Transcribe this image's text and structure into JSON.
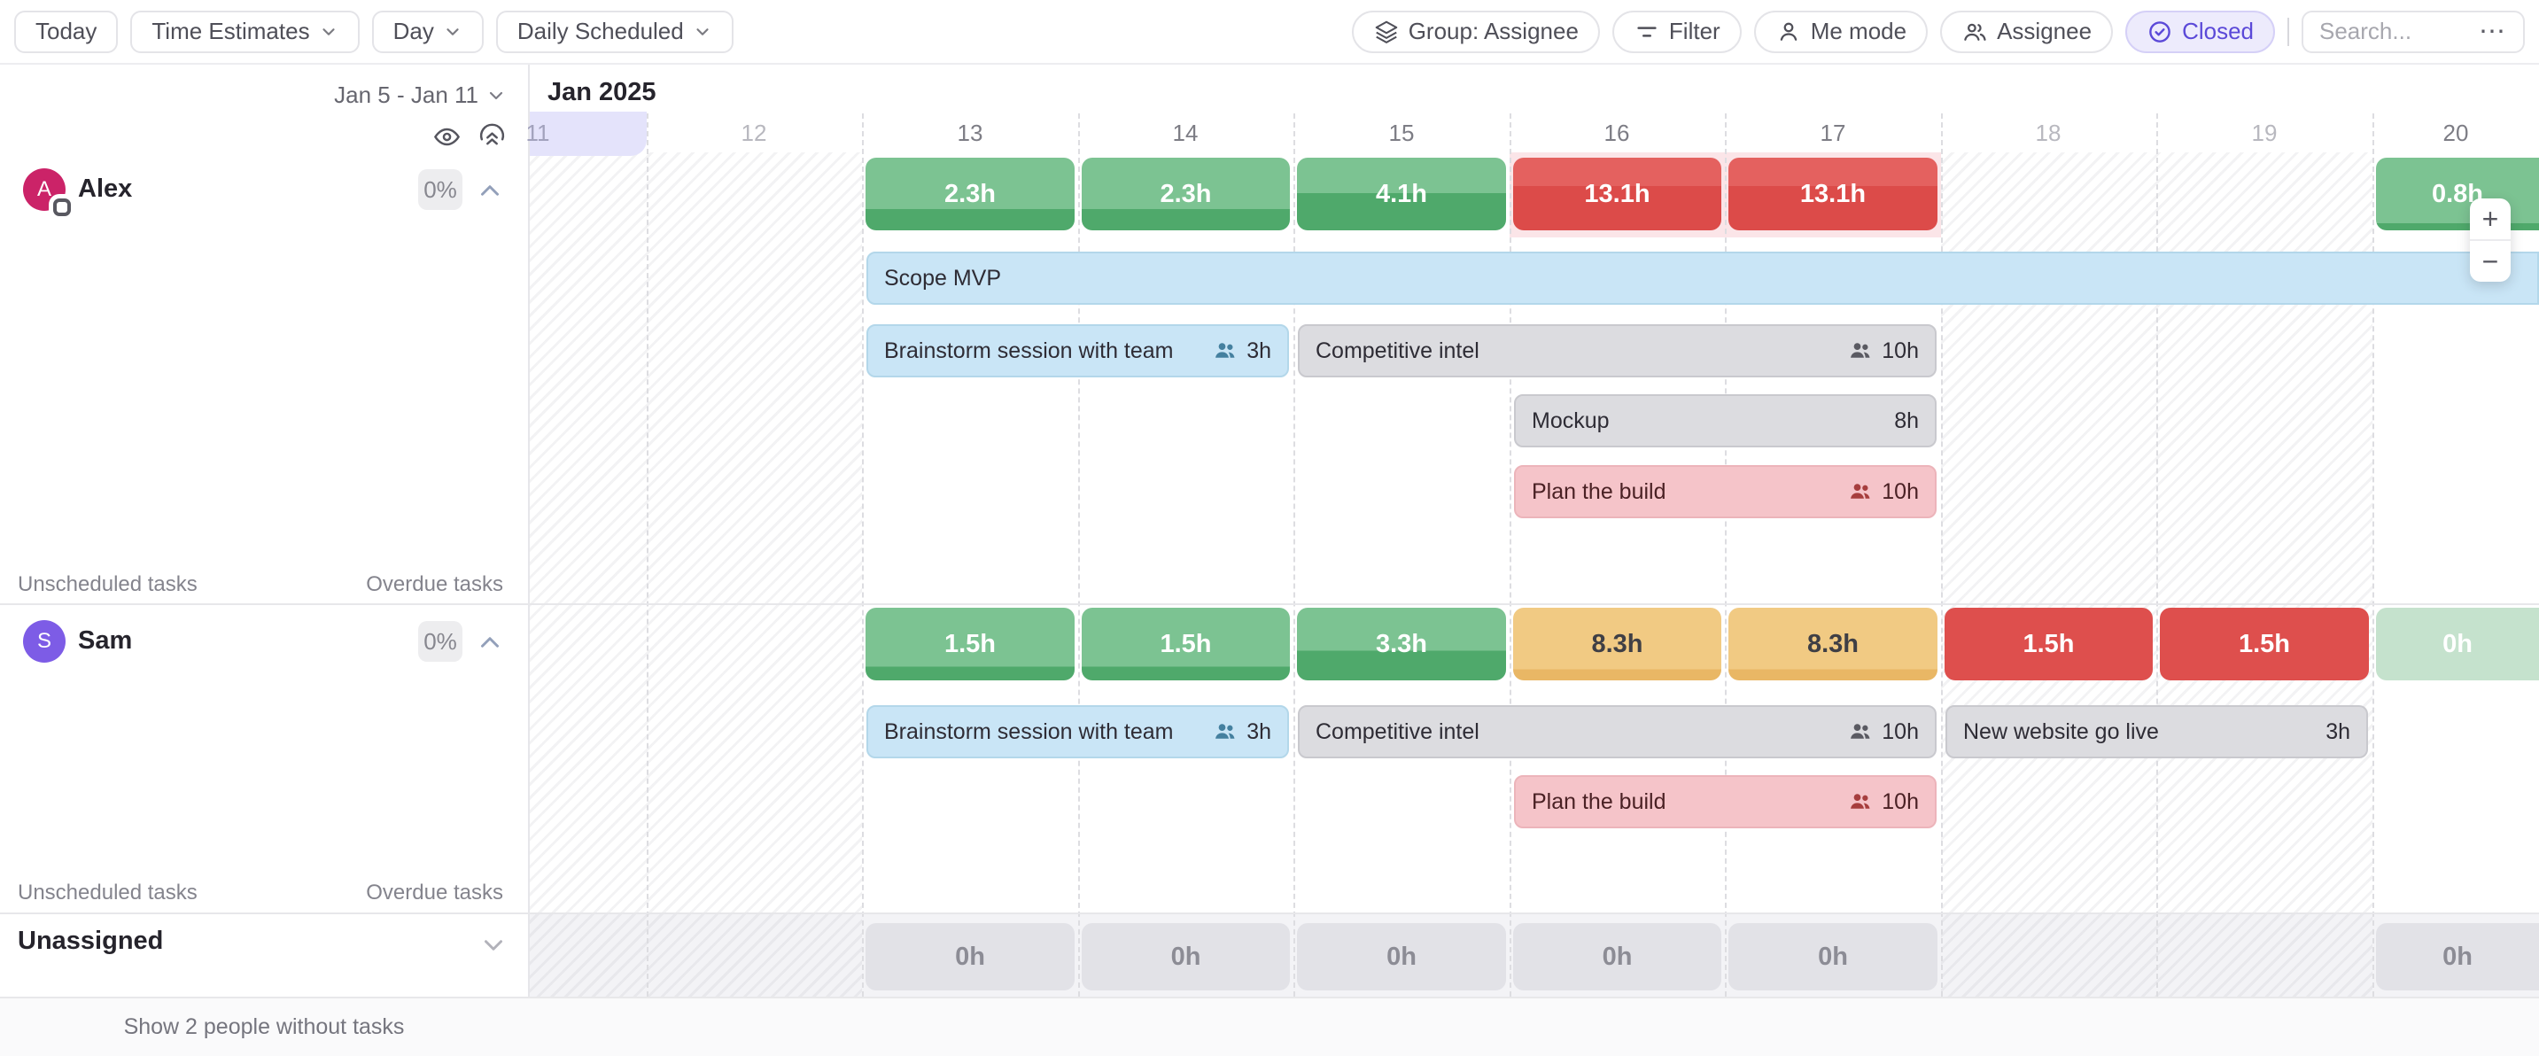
{
  "toolbar": {
    "today": "Today",
    "time_estimates": "Time Estimates",
    "day": "Day",
    "daily_scheduled": "Daily Scheduled",
    "group": "Group: Assignee",
    "filter": "Filter",
    "me_mode": "Me mode",
    "assignee": "Assignee",
    "closed": "Closed",
    "search_placeholder": "Search...",
    "more_glyph": "•••"
  },
  "header": {
    "range_label": "Jan 5 - Jan 11",
    "month_label": "Jan 2025"
  },
  "days": [
    {
      "label": "11",
      "weekend": true,
      "selected": true
    },
    {
      "label": "12",
      "weekend": true
    },
    {
      "label": "13"
    },
    {
      "label": "14"
    },
    {
      "label": "15"
    },
    {
      "label": "16"
    },
    {
      "label": "17"
    },
    {
      "label": "18",
      "weekend": true
    },
    {
      "label": "19",
      "weekend": true
    },
    {
      "label": "20"
    }
  ],
  "labels": {
    "unscheduled": "Unscheduled tasks",
    "overdue": "Overdue tasks"
  },
  "people": [
    {
      "name": "Alex",
      "initial": "A",
      "avatar_color": "#cb2368",
      "percent": "0%",
      "has_badge": true,
      "overload_days": [
        16,
        17
      ],
      "capacity": [
        {
          "day": 13,
          "label": "2.3h",
          "style": "green",
          "fill": 0.29
        },
        {
          "day": 14,
          "label": "2.3h",
          "style": "green",
          "fill": 0.29
        },
        {
          "day": 15,
          "label": "4.1h",
          "style": "green",
          "fill": 0.51
        },
        {
          "day": 16,
          "label": "13.1h",
          "style": "red_over",
          "fill": 0.61
        },
        {
          "day": 17,
          "label": "13.1h",
          "style": "red_over",
          "fill": 0.61
        },
        {
          "day": 20,
          "label": "0.8h",
          "style": "green",
          "fill": 0.1,
          "cut": true
        }
      ],
      "tasks": [
        {
          "label": "Scope MVP",
          "start": 13,
          "end": 20,
          "style": "blue",
          "lane": 0,
          "cut": true
        },
        {
          "label": "Brainstorm session with team",
          "hours": "3h",
          "people_icon": true,
          "start": 13,
          "end": 14,
          "style": "blue",
          "lane": 1
        },
        {
          "label": "Competitive intel",
          "hours": "10h",
          "people_icon": true,
          "start": 15,
          "end": 17,
          "style": "gray",
          "lane": 1
        },
        {
          "label": "Mockup",
          "hours": "8h",
          "start": 16,
          "end": 17,
          "style": "gray",
          "lane": 2
        },
        {
          "label": "Plan the build",
          "hours": "10h",
          "people_icon": true,
          "start": 16,
          "end": 17,
          "style": "pink",
          "lane": 3
        }
      ]
    },
    {
      "name": "Sam",
      "initial": "S",
      "avatar_color": "#7d5ce6",
      "percent": "0%",
      "capacity": [
        {
          "day": 13,
          "label": "1.5h",
          "style": "green",
          "fill": 0.19
        },
        {
          "day": 14,
          "label": "1.5h",
          "style": "green",
          "fill": 0.19
        },
        {
          "day": 15,
          "label": "3.3h",
          "style": "green",
          "fill": 0.41
        },
        {
          "day": 16,
          "label": "8.3h",
          "style": "amber",
          "fill": 0.15
        },
        {
          "day": 17,
          "label": "8.3h",
          "style": "amber",
          "fill": 0.15
        },
        {
          "day": 18,
          "label": "1.5h",
          "style": "red_solid"
        },
        {
          "day": 19,
          "label": "1.5h",
          "style": "red_solid"
        },
        {
          "day": 20,
          "label": "0h",
          "style": "mint",
          "cut": true
        }
      ],
      "tasks": [
        {
          "label": "Brainstorm session with team",
          "hours": "3h",
          "people_icon": true,
          "start": 13,
          "end": 14,
          "style": "blue",
          "lane": 0
        },
        {
          "label": "Competitive intel",
          "hours": "10h",
          "people_icon": true,
          "start": 15,
          "end": 17,
          "style": "gray",
          "lane": 0
        },
        {
          "label": "New website go live",
          "hours": "3h",
          "start": 18,
          "end": 19,
          "style": "gray",
          "lane": 0
        },
        {
          "label": "Plan the build",
          "hours": "10h",
          "people_icon": true,
          "start": 16,
          "end": 17,
          "style": "pink",
          "lane": 1
        }
      ]
    }
  ],
  "unassigned": {
    "title": "Unassigned",
    "bars": [
      {
        "day": 13,
        "label": "0h"
      },
      {
        "day": 14,
        "label": "0h"
      },
      {
        "day": 15,
        "label": "0h"
      },
      {
        "day": 16,
        "label": "0h"
      },
      {
        "day": 17,
        "label": "0h"
      },
      {
        "day": 20,
        "label": "0h",
        "cut": true
      }
    ]
  },
  "zoom_controls": {
    "zoom_in": "+",
    "zoom_out": "−"
  },
  "footer": {
    "show_people": "Show 2 people without tasks"
  },
  "colors": {
    "green_light": "#7cc392",
    "green_dark": "#4fa96b",
    "red_light": "#e4615f",
    "red_dark": "#dc4b49",
    "red_solid": "#de4f4d",
    "amber": "#f1ca83",
    "amber_dark": "#e9b765",
    "amber_text": "#3f3f45",
    "mint": "#c5e2cd",
    "gray_bar": "#e2e2e7",
    "gray_bar_text": "#8c8c95",
    "task_blue_bg": "#c9e5f6",
    "task_blue_border": "#b3d7ea",
    "task_gray_bg": "#dcdce0",
    "task_gray_border": "#c9c9ce",
    "task_pink_bg": "#f5c4c9",
    "task_pink_border": "#ecb4ba",
    "task_pink_text": "#4a2124",
    "task_pink_icon": "#a63e3e",
    "task_text": "#2e2c35",
    "icon_blue": "#44809f",
    "icon_gray": "#5a5a62",
    "overload_tint": "#fbe5e8",
    "selected_day": "#e4e3fb",
    "accent": "#5b49d8"
  }
}
